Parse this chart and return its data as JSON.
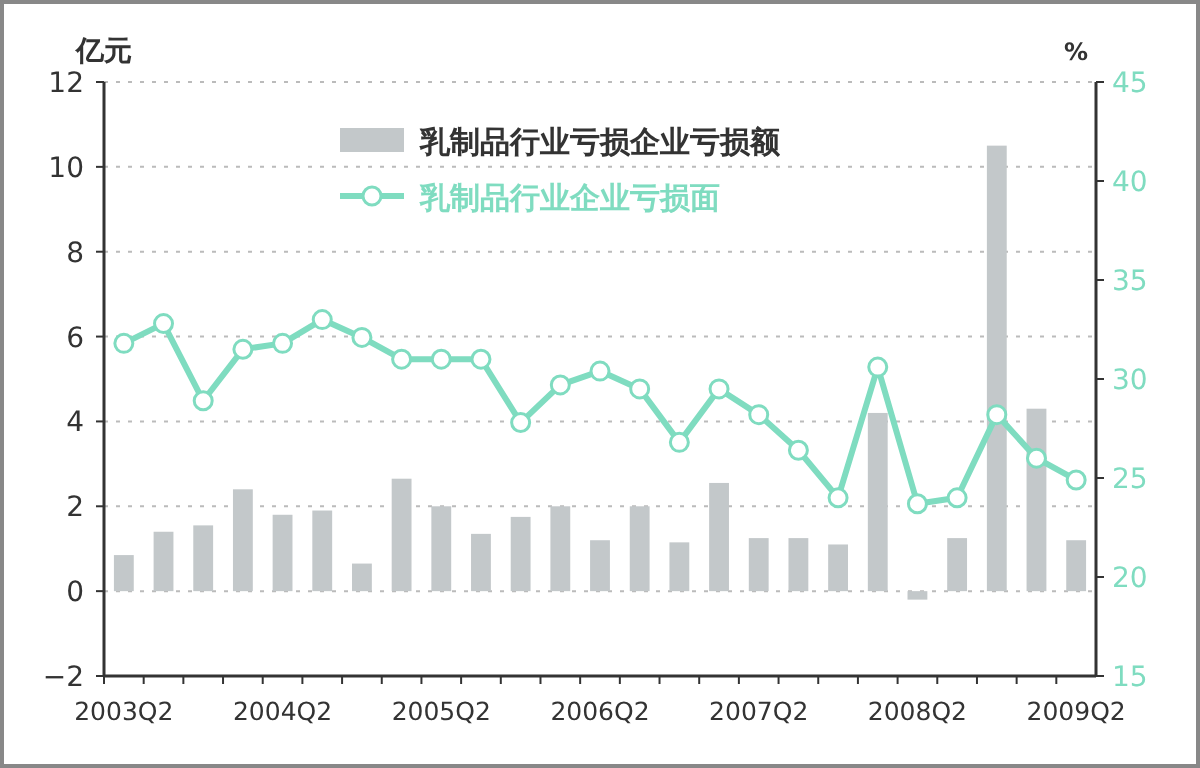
{
  "chart_data": {
    "type": "bar",
    "ylabel": "亿元",
    "y2label": "%",
    "categories": [
      "2003Q2",
      null,
      null,
      null,
      "2004Q2",
      null,
      null,
      null,
      "2005Q2",
      null,
      null,
      null,
      "2006Q2",
      null,
      null,
      null,
      "2007Q2",
      null,
      null,
      null,
      "2008Q2",
      null,
      null,
      null,
      "2009Q2"
    ],
    "series": [
      {
        "name": "乳制品行业亏损企业亏损额",
        "color": "#c3c8ca",
        "values": [
          0.85,
          1.4,
          1.55,
          2.4,
          1.8,
          1.9,
          0.65,
          2.65,
          2.0,
          1.35,
          1.75,
          2.0,
          1.2,
          2.0,
          1.15,
          2.55,
          1.25,
          1.25,
          1.1,
          4.2,
          -0.2,
          1.25,
          10.5,
          4.3,
          1.2
        ]
      },
      {
        "name": "乳制品行业企业亏损面",
        "type": "line",
        "axis": "y2",
        "color": "#7fdcc0",
        "marker": "circle",
        "values": [
          31.8,
          32.8,
          28.9,
          31.5,
          31.8,
          33.0,
          32.1,
          31.0,
          31.0,
          31.0,
          27.8,
          29.7,
          30.4,
          29.5,
          26.8,
          29.5,
          28.2,
          26.4,
          24.0,
          30.6,
          23.7,
          24.0,
          28.2,
          26.0,
          24.9
        ]
      }
    ],
    "ylim": [
      -2,
      12
    ],
    "yticks": [
      -2,
      0,
      2,
      4,
      6,
      8,
      10,
      12
    ],
    "y2lim": [
      15,
      45
    ],
    "y2ticks": [
      15,
      20,
      25,
      30,
      35,
      40,
      45
    ],
    "grid": "y",
    "legend": "top"
  }
}
